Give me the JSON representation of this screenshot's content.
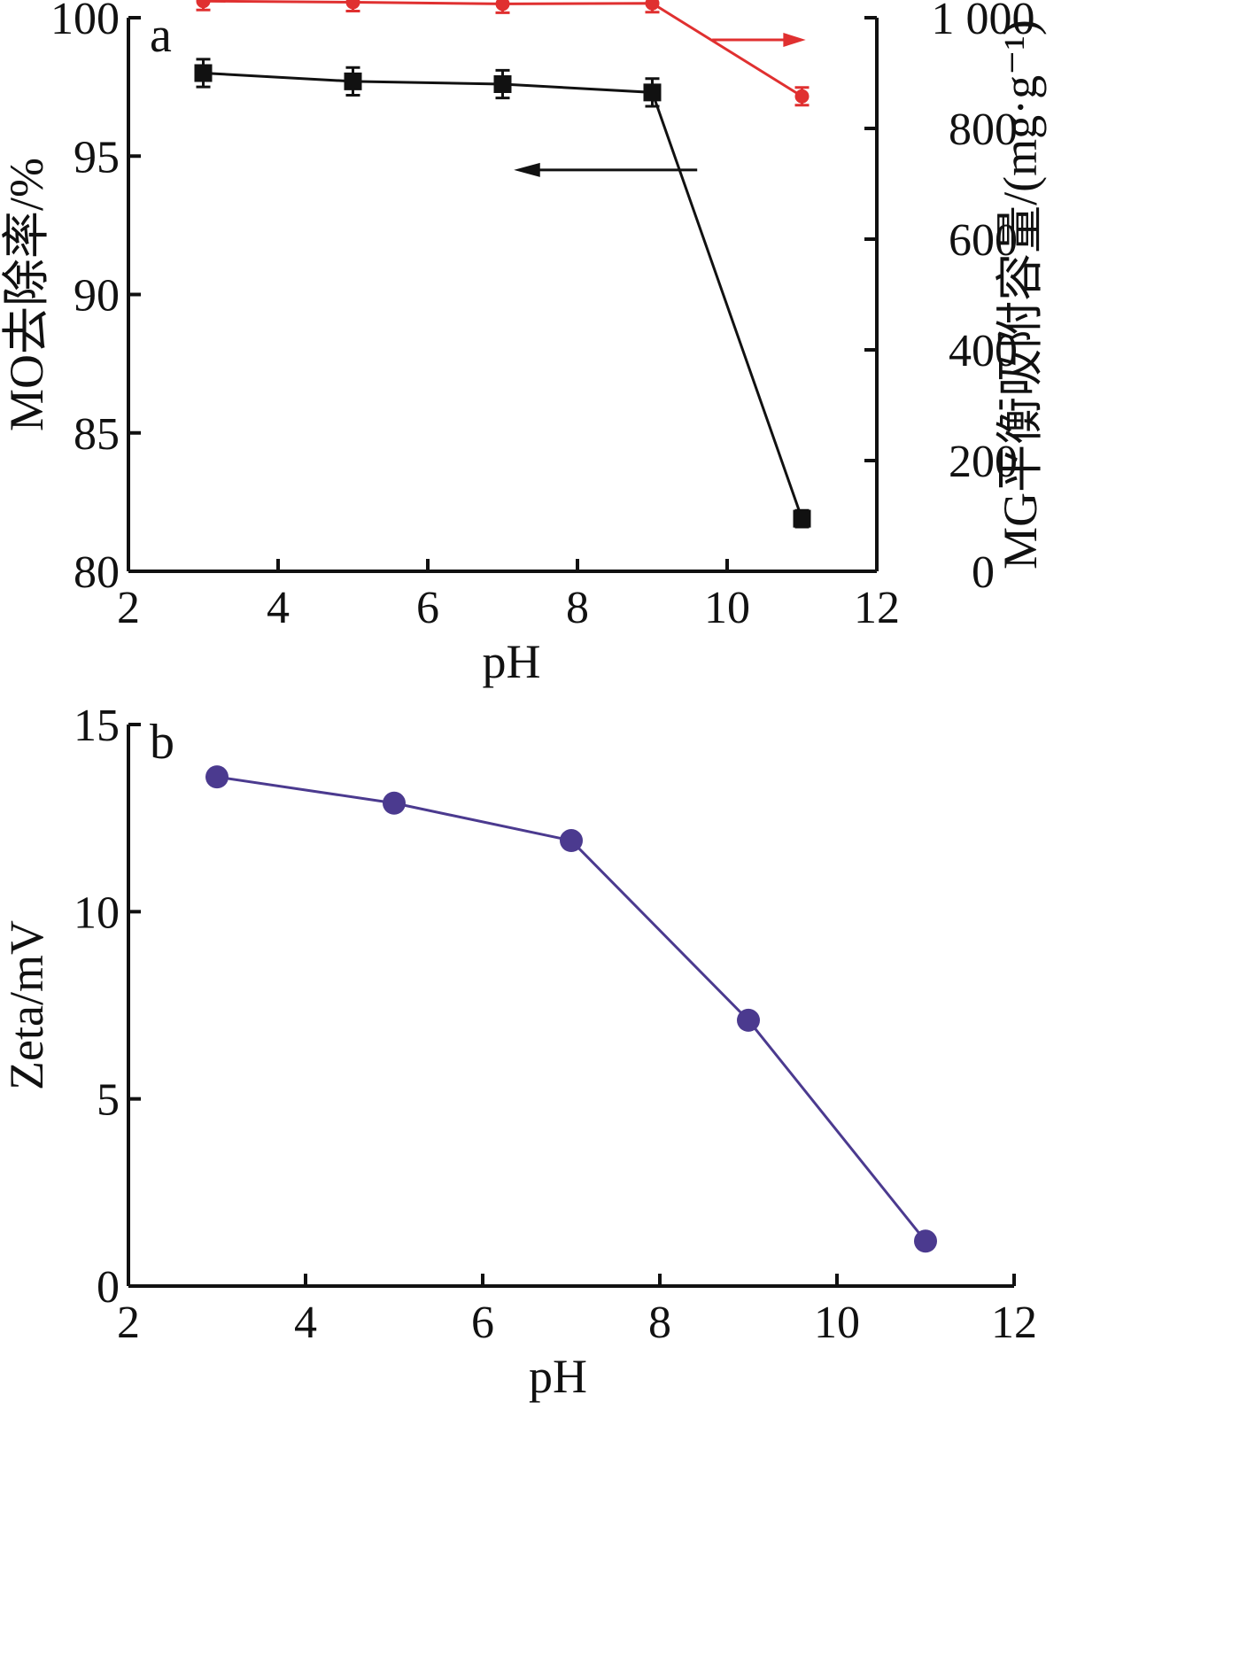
{
  "chart_data": [
    {
      "type": "line",
      "panel_label": "a",
      "xlabel": "pH",
      "ylabel": "MO去除率/%",
      "y2label": "MG平衡吸附容量/(mg·g⁻¹)",
      "xlim": [
        2,
        12
      ],
      "ylim": [
        80,
        100
      ],
      "y2lim": [
        0,
        1000
      ],
      "x_ticks": [
        "2",
        "4",
        "6",
        "8",
        "10",
        "12"
      ],
      "y_ticks": [
        "80",
        "85",
        "90",
        "95",
        "100"
      ],
      "y2_ticks": [
        "0",
        "200",
        "400",
        "600",
        "800",
        "1 000"
      ],
      "series": [
        {
          "axis": "left",
          "marker": "square",
          "color": "#111111",
          "x": [
            3,
            5,
            7,
            9,
            11
          ],
          "values": [
            98.0,
            97.7,
            97.6,
            97.3,
            81.9
          ],
          "error": [
            0.5,
            0.5,
            0.5,
            0.5,
            0.3
          ]
        },
        {
          "axis": "right",
          "marker": "circle",
          "color": "#e03030",
          "x": [
            3,
            5,
            7,
            9,
            11
          ],
          "values": [
            1030,
            1028,
            1025,
            1026,
            858
          ],
          "error": [
            16,
            16,
            16,
            16,
            16
          ]
        }
      ],
      "annotations": [
        {
          "type": "arrow",
          "direction": "left",
          "points_to": "left axis"
        },
        {
          "type": "arrow",
          "direction": "right",
          "points_to": "right axis"
        }
      ]
    },
    {
      "type": "line",
      "panel_label": "b",
      "xlabel": "pH",
      "ylabel": "Zeta/mV",
      "xlim": [
        2,
        12
      ],
      "ylim": [
        0,
        15
      ],
      "x_ticks": [
        "2",
        "4",
        "6",
        "8",
        "10",
        "12"
      ],
      "y_ticks": [
        "0",
        "5",
        "10",
        "15"
      ],
      "series": [
        {
          "marker": "circle",
          "color": "#4b3a8f",
          "x": [
            3,
            5,
            7,
            9,
            11
          ],
          "values": [
            13.6,
            12.9,
            11.9,
            7.1,
            1.2
          ]
        }
      ]
    }
  ]
}
